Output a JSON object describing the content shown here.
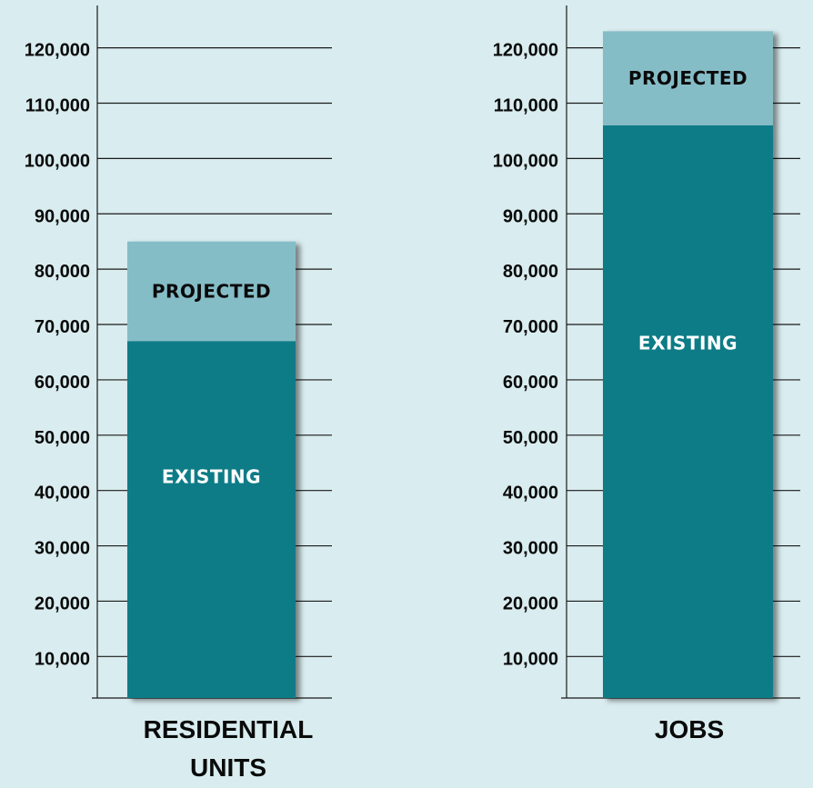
{
  "chart_data": [
    {
      "type": "bar",
      "stacked": true,
      "categories": [
        "RESIDENTIAL UNITS"
      ],
      "category_lines": [
        "RESIDENTIAL",
        "UNITS"
      ],
      "series": [
        {
          "name": "EXISTING",
          "values": [
            67000
          ],
          "color": "#0e7b87",
          "label_color": "#ffffff"
        },
        {
          "name": "PROJECTED",
          "values": [
            18000
          ],
          "color": "#85bdc7",
          "label_color": "#0a0a0a"
        }
      ],
      "yticks": [
        "10,000",
        "20,000",
        "30,000",
        "40,000",
        "50,000",
        "60,000",
        "70,000",
        "80,000",
        "90,000",
        "100,000",
        "110,000",
        "120,000"
      ],
      "ytick_values": [
        10000,
        20000,
        30000,
        40000,
        50000,
        60000,
        70000,
        80000,
        90000,
        100000,
        110000,
        120000
      ],
      "ylim": [
        2500,
        127000
      ],
      "grid": true,
      "background": "#d9ecef"
    },
    {
      "type": "bar",
      "stacked": true,
      "categories": [
        "JOBS"
      ],
      "category_lines": [
        "JOBS"
      ],
      "series": [
        {
          "name": "EXISTING",
          "values": [
            106000
          ],
          "color": "#0e7b87",
          "label_color": "#ffffff"
        },
        {
          "name": "PROJECTED",
          "values": [
            17000
          ],
          "color": "#85bdc7",
          "label_color": "#0a0a0a"
        }
      ],
      "yticks": [
        "10,000",
        "20,000",
        "30,000",
        "40,000",
        "50,000",
        "60,000",
        "70,000",
        "80,000",
        "90,000",
        "100,000",
        "110,000",
        "120,000"
      ],
      "ytick_values": [
        10000,
        20000,
        30000,
        40000,
        50000,
        60000,
        70000,
        80000,
        90000,
        100000,
        110000,
        120000
      ],
      "ylim": [
        2500,
        127000
      ],
      "grid": true,
      "background": "#d9ecef"
    }
  ]
}
